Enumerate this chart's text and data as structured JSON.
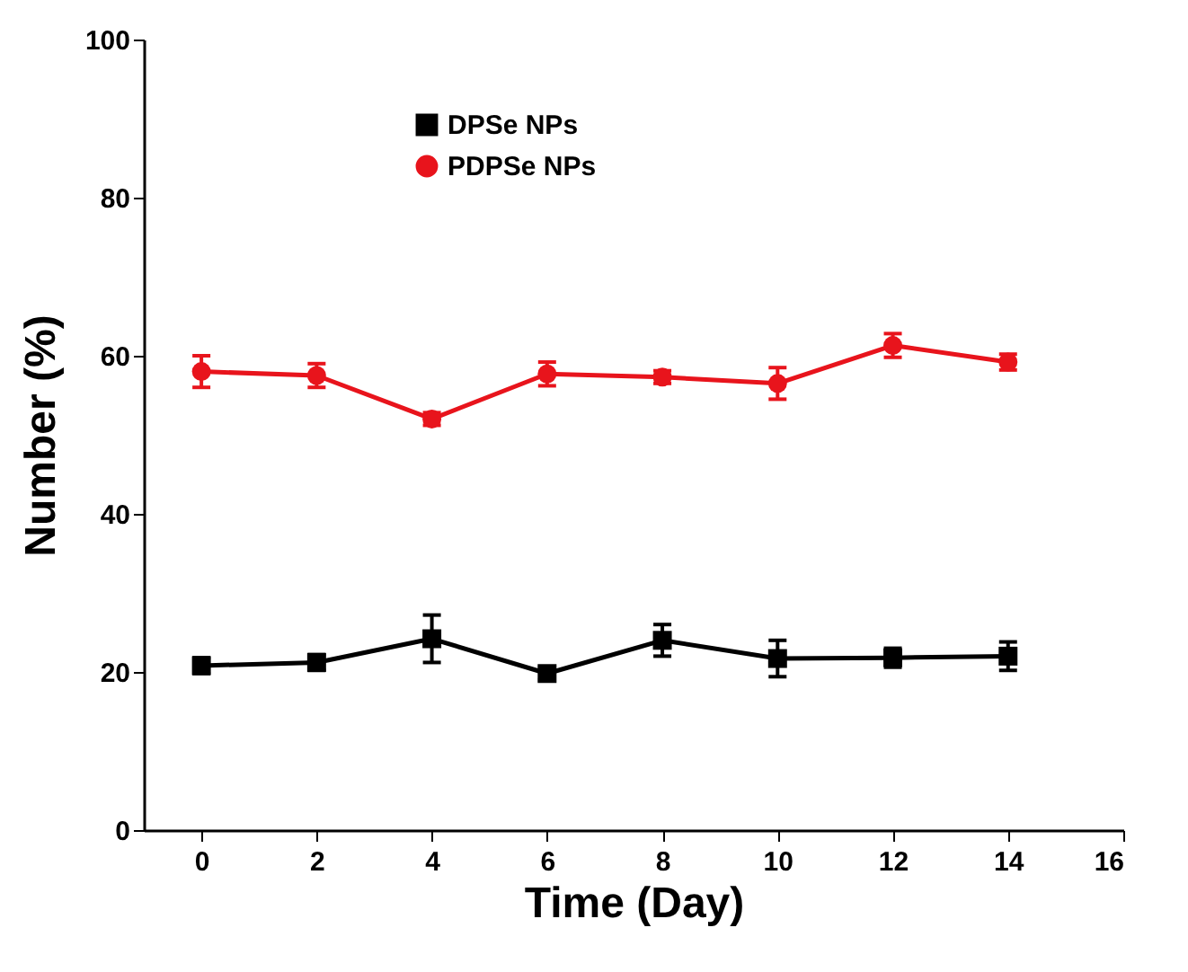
{
  "chart_data": {
    "type": "line",
    "xlabel": "Time (Day)",
    "ylabel": "Number (%)",
    "x": [
      0,
      2,
      4,
      6,
      8,
      10,
      12,
      14
    ],
    "series": [
      {
        "name": "DPSe NPs",
        "color": "#000000",
        "marker": "square",
        "values": [
          20.8,
          21.2,
          24.2,
          19.8,
          24,
          21.7,
          21.8,
          22
        ],
        "errors": [
          1,
          1,
          3,
          0.8,
          2,
          2.3,
          1.2,
          1.8
        ]
      },
      {
        "name": "PDPSe NPs",
        "color": "#e8141c",
        "marker": "circle",
        "values": [
          58,
          57.5,
          52,
          57.7,
          57.3,
          56.5,
          61.3,
          59.2
        ],
        "errors": [
          2,
          1.5,
          0.8,
          1.5,
          0.8,
          2,
          1.5,
          1
        ]
      }
    ],
    "xlim": [
      -1,
      16
    ],
    "xticks": [
      0,
      2,
      4,
      6,
      8,
      10,
      12,
      14,
      16
    ],
    "ylim": [
      0,
      100
    ],
    "yticks": [
      0,
      20,
      40,
      60,
      80,
      100
    ],
    "grid": false,
    "legend": "top"
  }
}
